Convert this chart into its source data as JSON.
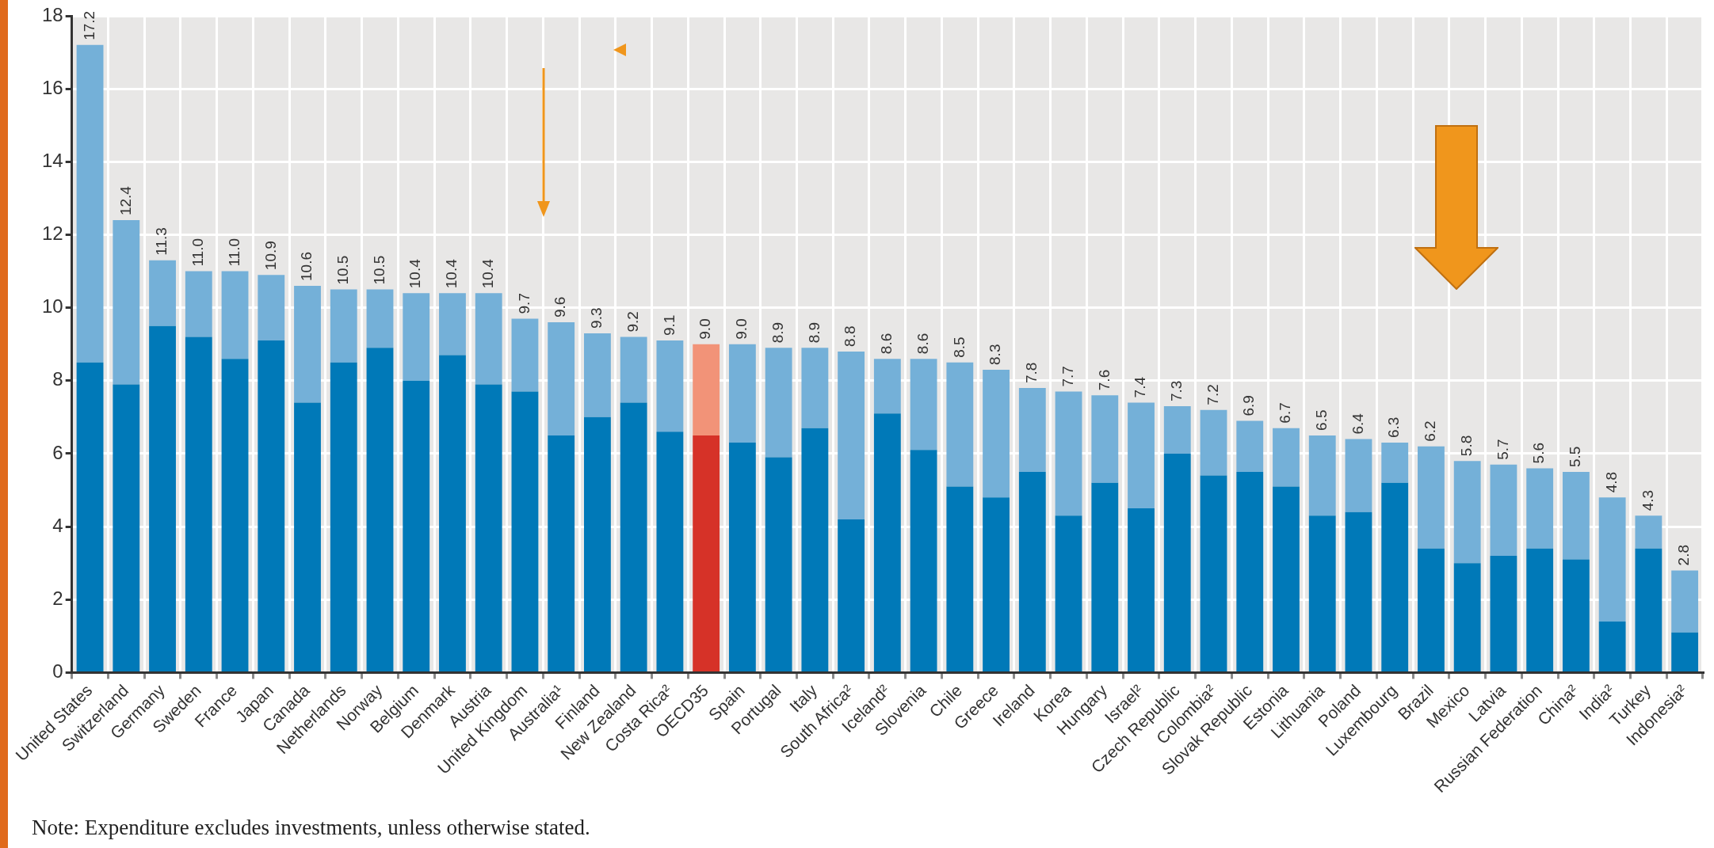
{
  "chart_data": {
    "type": "bar",
    "stacked": true,
    "legend": false,
    "grid": true,
    "categories": [
      "United States",
      "Switzerland",
      "Germany",
      "Sweden",
      "France",
      "Japan",
      "Canada",
      "Netherlands",
      "Norway",
      "Belgium",
      "Denmark",
      "Austria",
      "United Kingdom",
      "Australia¹",
      "Finland",
      "New Zealand",
      "Costa Rica²",
      "OECD35",
      "Spain",
      "Portugal",
      "Italy",
      "South Africa²",
      "Iceland²",
      "Slovenia",
      "Chile",
      "Greece",
      "Ireland",
      "Korea",
      "Hungary",
      "Israel²",
      "Czech Republic",
      "Colombia²",
      "Slovak Republic",
      "Estonia",
      "Lithuania",
      "Poland",
      "Luxembourg",
      "Brazil",
      "Mexico",
      "Latvia",
      "Russian Federation",
      "China²",
      "India²",
      "Turkey",
      "Indonesia²"
    ],
    "series": [
      {
        "colors": [
          "#0079b8",
          "#0079b8",
          "#0079b8",
          "#0079b8",
          "#0079b8",
          "#0079b8",
          "#0079b8",
          "#0079b8",
          "#0079b8",
          "#0079b8",
          "#0079b8",
          "#0079b8",
          "#0079b8",
          "#0079b8",
          "#0079b8",
          "#0079b8",
          "#0079b8",
          "#d63228",
          "#0079b8",
          "#0079b8",
          "#0079b8",
          "#0079b8",
          "#0079b8",
          "#0079b8",
          "#0079b8",
          "#0079b8",
          "#0079b8",
          "#0079b8",
          "#0079b8",
          "#0079b8",
          "#0079b8",
          "#0079b8",
          "#0079b8",
          "#0079b8",
          "#0079b8",
          "#0079b8",
          "#0079b8",
          "#0079b8",
          "#0079b8",
          "#0079b8",
          "#0079b8",
          "#0079b8",
          "#0079b8",
          "#0079b8",
          "#0079b8"
        ],
        "values": [
          8.5,
          7.9,
          9.5,
          9.2,
          8.6,
          9.1,
          7.4,
          8.5,
          8.9,
          8.0,
          8.7,
          7.9,
          7.7,
          6.5,
          7.0,
          7.4,
          6.6,
          6.5,
          6.3,
          5.9,
          6.7,
          4.2,
          7.1,
          6.1,
          5.1,
          4.8,
          5.5,
          4.3,
          5.2,
          4.5,
          6.0,
          5.4,
          5.5,
          5.1,
          4.3,
          4.4,
          5.2,
          3.4,
          3.0,
          3.2,
          3.4,
          3.1,
          1.4,
          3.4,
          1.1
        ]
      },
      {
        "colors": [
          "#74b0d8",
          "#74b0d8",
          "#74b0d8",
          "#74b0d8",
          "#74b0d8",
          "#74b0d8",
          "#74b0d8",
          "#74b0d8",
          "#74b0d8",
          "#74b0d8",
          "#74b0d8",
          "#74b0d8",
          "#74b0d8",
          "#74b0d8",
          "#74b0d8",
          "#74b0d8",
          "#74b0d8",
          "#f29378",
          "#74b0d8",
          "#74b0d8",
          "#74b0d8",
          "#74b0d8",
          "#74b0d8",
          "#74b0d8",
          "#74b0d8",
          "#74b0d8",
          "#74b0d8",
          "#74b0d8",
          "#74b0d8",
          "#74b0d8",
          "#74b0d8",
          "#74b0d8",
          "#74b0d8",
          "#74b0d8",
          "#74b0d8",
          "#74b0d8",
          "#74b0d8",
          "#74b0d8",
          "#74b0d8",
          "#74b0d8",
          "#74b0d8",
          "#74b0d8",
          "#74b0d8",
          "#74b0d8",
          "#74b0d8"
        ],
        "values": [
          8.7,
          4.5,
          1.8,
          1.8,
          2.4,
          1.8,
          3.2,
          2.0,
          1.6,
          2.4,
          1.7,
          2.5,
          2.0,
          3.1,
          2.3,
          1.8,
          2.5,
          2.5,
          2.7,
          3.0,
          2.2,
          4.6,
          1.5,
          2.5,
          3.4,
          3.5,
          2.3,
          3.4,
          2.4,
          2.9,
          1.3,
          1.8,
          1.4,
          1.6,
          2.2,
          2.0,
          1.1,
          2.8,
          2.8,
          2.5,
          2.2,
          2.4,
          3.4,
          0.9,
          1.7
        ]
      }
    ],
    "totals": [
      "17.2",
      "12.4",
      "11.3",
      "11.0",
      "11.0",
      "10.9",
      "10.6",
      "10.5",
      "10.5",
      "10.4",
      "10.4",
      "10.4",
      "9.7",
      "9.6",
      "9.3",
      "9.2",
      "9.1",
      "9.0",
      "9.0",
      "8.9",
      "8.9",
      "8.8",
      "8.6",
      "8.6",
      "8.5",
      "8.3",
      "7.8",
      "7.7",
      "7.6",
      "7.4",
      "7.3",
      "7.2",
      "6.9",
      "6.7",
      "6.5",
      "6.4",
      "6.3",
      "6.2",
      "5.8",
      "5.7",
      "5.6",
      "5.5",
      "4.8",
      "4.3",
      "2.8"
    ],
    "ylim": [
      0,
      18
    ],
    "yticks": [
      0,
      2,
      4,
      6,
      8,
      10,
      12,
      14,
      16,
      18
    ],
    "annotations": [
      "Note: Expenditure excludes investments, unless otherwise stated."
    ]
  }
}
